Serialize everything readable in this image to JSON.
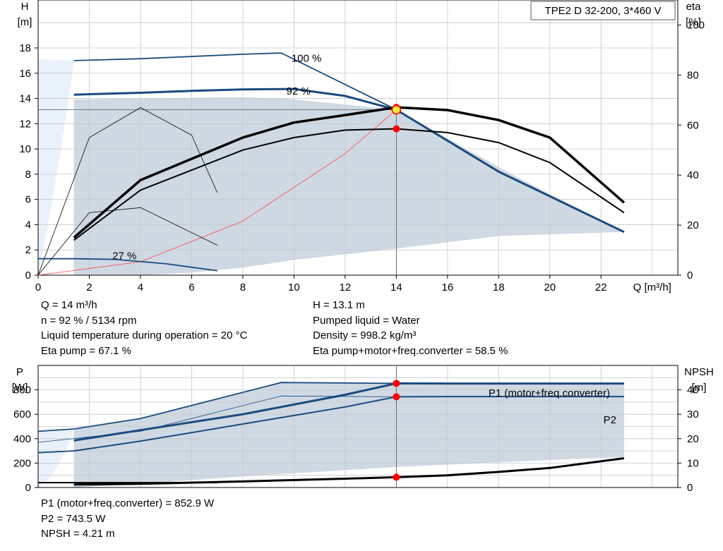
{
  "title_box": "TPE2 D 32-200, 3*460 V",
  "colors": {
    "navy": "#1a4a7e",
    "band_fill": "#cfd9e4",
    "light_fill": "#e9f1fa",
    "grid": "#c8c8c8",
    "marker": "#ff0000",
    "op_marker_fill": "#ffeb3b",
    "system_curve": "#ff4444"
  },
  "chart_data": [
    {
      "type": "line",
      "name": "head-efficiency",
      "xlabel": "Q [m³/h]",
      "ylabel_left": [
        "H",
        "[m]"
      ],
      "ylabel_right": [
        "eta",
        "[%]"
      ],
      "xlim": [
        0,
        25
      ],
      "ylim": [
        0,
        21.8
      ],
      "y2lim": [
        0,
        110
      ],
      "x_ticks": [
        0,
        2,
        4,
        6,
        8,
        10,
        12,
        14,
        16,
        18,
        20,
        22
      ],
      "y_ticks": [
        0,
        2,
        4,
        6,
        8,
        10,
        12,
        14,
        16,
        18
      ],
      "y2_ticks": [
        0,
        20,
        40,
        60,
        80,
        100
      ],
      "grid": true,
      "operating_range": [
        [
          1.4,
          13.7
        ],
        [
          1.4,
          13.9
        ],
        [
          4,
          14.02
        ],
        [
          8,
          14.08
        ],
        [
          9.6,
          14.0
        ],
        [
          14,
          13.1
        ],
        [
          18.5,
          8.0
        ],
        [
          22.9,
          3.42
        ],
        [
          18,
          3.1
        ],
        [
          14,
          2.1
        ],
        [
          10,
          1.2
        ],
        [
          8,
          0.6
        ],
        [
          6,
          0.2
        ],
        [
          4,
          0
        ],
        [
          2,
          0
        ],
        [
          1.4,
          0
        ]
      ],
      "series": [
        {
          "label": "100 %",
          "points": [
            [
              1.4,
              17.0
            ],
            [
              4,
              17.15
            ],
            [
              8,
              17.5
            ],
            [
              9.5,
              17.6
            ],
            [
              14,
              13.1
            ],
            [
              18,
              8.2
            ],
            [
              22.9,
              3.42
            ]
          ]
        },
        {
          "label": "92 %",
          "points": [
            [
              1.4,
              14.3
            ],
            [
              4,
              14.45
            ],
            [
              6,
              14.6
            ],
            [
              8,
              14.72
            ],
            [
              10,
              14.75
            ],
            [
              12,
              14.2
            ],
            [
              14,
              13.1
            ]
          ]
        },
        {
          "label": "27 %",
          "points": [
            [
              0,
              1.3
            ],
            [
              1.4,
              1.3
            ],
            [
              3,
              1.25
            ],
            [
              5,
              0.9
            ],
            [
              7,
              0.35
            ]
          ]
        },
        {
          "label": "",
          "points": [
            [
              14,
              13.1
            ],
            [
              18,
              8.2
            ],
            [
              22.9,
              3.42
            ]
          ]
        }
      ],
      "eta_curves": [
        {
          "points": [
            [
              1.4,
              14
            ],
            [
              4,
              34
            ],
            [
              8,
              50
            ],
            [
              10,
              55
            ],
            [
              12,
              58
            ],
            [
              14,
              58.5
            ],
            [
              16,
              57
            ],
            [
              18,
              53
            ],
            [
              20,
              45
            ],
            [
              22.9,
              25
            ]
          ]
        },
        {
          "points": [
            [
              1.4,
              15
            ],
            [
              4,
              38
            ],
            [
              8,
              55
            ],
            [
              10,
              61
            ],
            [
              12,
              64
            ],
            [
              14,
              67.1
            ],
            [
              16,
              66
            ],
            [
              18,
              62
            ],
            [
              20,
              55
            ],
            [
              22.9,
              29
            ]
          ]
        },
        {
          "points": [
            [
              0,
              0
            ],
            [
              2,
              25
            ],
            [
              4,
              27
            ],
            [
              6,
              17
            ],
            [
              7,
              12
            ]
          ]
        },
        {
          "points": [
            [
              0,
              0
            ],
            [
              2,
              55
            ],
            [
              4,
              67
            ],
            [
              6,
              56
            ],
            [
              7,
              33
            ]
          ]
        }
      ],
      "system_curve": [
        [
          0,
          0
        ],
        [
          4,
          1.06
        ],
        [
          8,
          4.28
        ],
        [
          12,
          9.63
        ],
        [
          14,
          13.1
        ]
      ],
      "operating_point": {
        "q": 14,
        "h": 13.1,
        "eta_pump": 67.1,
        "eta_total": 58.5
      }
    },
    {
      "type": "line",
      "name": "power-npsh",
      "ylabel_left": [
        "P",
        "[W]"
      ],
      "ylabel_right": [
        "NPSH",
        "[m]"
      ],
      "xlim": [
        0,
        25
      ],
      "ylim": [
        0,
        1000
      ],
      "y2lim": [
        0,
        50
      ],
      "y_ticks": [
        0,
        200,
        400,
        600,
        800
      ],
      "y2_ticks": [
        0,
        10,
        20,
        30,
        40
      ],
      "grid": true,
      "operating_range": [
        [
          1.4,
          480
        ],
        [
          4,
          565
        ],
        [
          9.5,
          860
        ],
        [
          14,
          850
        ],
        [
          22.9,
          850
        ],
        [
          22.9,
          250
        ],
        [
          20,
          225
        ],
        [
          14,
          168
        ],
        [
          8,
          90
        ],
        [
          4,
          30
        ],
        [
          1.4,
          0
        ]
      ],
      "series": [
        {
          "label": "P1 (motor+freq.converter)",
          "points": [
            [
              1.4,
              385
            ],
            [
              4,
              470
            ],
            [
              8,
              600
            ],
            [
              12,
              760
            ],
            [
              14,
              852.9
            ],
            [
              16,
              852
            ],
            [
              22.9,
              852
            ]
          ]
        },
        {
          "label": "P2",
          "points": [
            [
              1.4,
              300
            ],
            [
              4,
              380
            ],
            [
              8,
              520
            ],
            [
              12,
              660
            ],
            [
              14,
              743.5
            ],
            [
              16,
              745
            ],
            [
              22.9,
              745
            ]
          ]
        },
        {
          "label": "",
          "points": [
            [
              0,
              460
            ],
            [
              1.4,
              480
            ],
            [
              4,
              565
            ],
            [
              9.5,
              860
            ],
            [
              14,
              852.9
            ],
            [
              22.9,
              852
            ]
          ]
        },
        {
          "label": "",
          "points": [
            [
              0,
              370
            ],
            [
              4,
              460
            ],
            [
              9.5,
              750
            ],
            [
              14,
              743.5
            ],
            [
              22.9,
              745
            ]
          ]
        },
        {
          "label": "",
          "points": [
            [
              0,
              285
            ],
            [
              1.4,
              300
            ]
          ]
        },
        {
          "label": "",
          "points": [
            [
              0,
              40
            ],
            [
              7,
              40
            ]
          ]
        }
      ],
      "npsh_curve": [
        [
          1.4,
          1.2
        ],
        [
          4,
          1.5
        ],
        [
          8,
          2.5
        ],
        [
          12,
          3.6
        ],
        [
          14,
          4.21
        ],
        [
          16,
          5.0
        ],
        [
          18,
          6.4
        ],
        [
          20,
          8.0
        ],
        [
          22.9,
          12.0
        ]
      ],
      "operating_point": {
        "q": 14,
        "p1": 852.9,
        "p2": 743.5,
        "npsh": 4.21
      }
    }
  ],
  "info_top_left": [
    "Q = 14 m³/h",
    "n = 92 % / 5134 rpm",
    "Liquid temperature during operation = 20 °C",
    "Eta pump = 67.1 %"
  ],
  "info_top_right": [
    "H = 13.1 m",
    "Pumped liquid = Water",
    "Density = 998.2 kg/m³",
    "Eta pump+motor+freq.converter = 58.5 %"
  ],
  "info_bottom": [
    "P1 (motor+freq.converter) = 852.9 W",
    "P2 = 743.5 W",
    "NPSH = 4.21 m"
  ]
}
